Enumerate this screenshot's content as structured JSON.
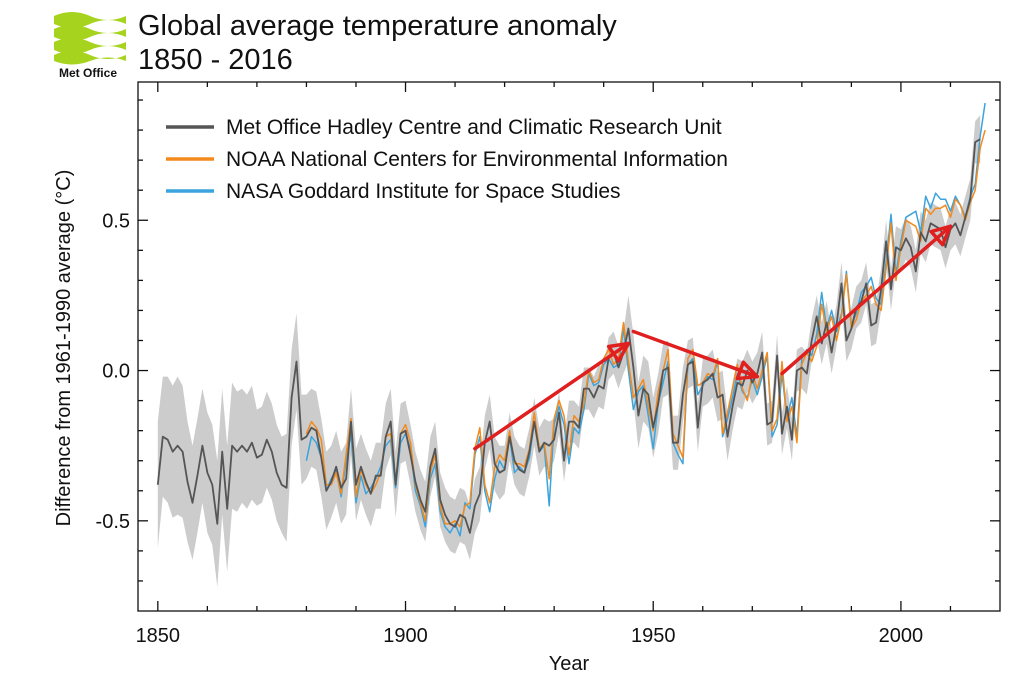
{
  "logo": {
    "text": "Met Office",
    "color": "#a6d41e"
  },
  "chart_data": {
    "type": "line",
    "title_line1": "Global average temperature anomaly",
    "title_line2": "1850 - 2016",
    "xlabel": "Year",
    "ylabel": "Difference from 1961-1990 average (°C)",
    "xlim": [
      1846,
      2020
    ],
    "ylim": [
      -0.8,
      0.96
    ],
    "xticks": [
      1850,
      1900,
      1950,
      2000
    ],
    "yticks": [
      -0.5,
      0.0,
      0.5
    ],
    "ytick_labels": [
      "-0.5",
      "0.0",
      "0.5"
    ],
    "legend_position": "top-left",
    "series": [
      {
        "name": "Met Office Hadley Centre and Climatic Research Unit",
        "color": "#555555",
        "x_start": 1850,
        "values": [
          -0.38,
          -0.22,
          -0.23,
          -0.27,
          -0.25,
          -0.27,
          -0.37,
          -0.44,
          -0.35,
          -0.25,
          -0.34,
          -0.38,
          -0.51,
          -0.27,
          -0.46,
          -0.25,
          -0.27,
          -0.25,
          -0.27,
          -0.24,
          -0.29,
          -0.28,
          -0.23,
          -0.27,
          -0.34,
          -0.38,
          -0.39,
          -0.09,
          0.03,
          -0.23,
          -0.22,
          -0.19,
          -0.2,
          -0.29,
          -0.4,
          -0.37,
          -0.32,
          -0.39,
          -0.36,
          -0.17,
          -0.38,
          -0.32,
          -0.37,
          -0.41,
          -0.35,
          -0.35,
          -0.22,
          -0.17,
          -0.38,
          -0.21,
          -0.2,
          -0.28,
          -0.37,
          -0.43,
          -0.47,
          -0.32,
          -0.26,
          -0.43,
          -0.48,
          -0.51,
          -0.52,
          -0.48,
          -0.49,
          -0.54,
          -0.45,
          -0.41,
          -0.24,
          -0.17,
          -0.31,
          -0.34,
          -0.33,
          -0.22,
          -0.3,
          -0.33,
          -0.34,
          -0.27,
          -0.17,
          -0.27,
          -0.24,
          -0.25,
          -0.23,
          -0.14,
          -0.3,
          -0.17,
          -0.17,
          -0.19,
          -0.06,
          -0.06,
          -0.09,
          -0.05,
          -0.06,
          0.04,
          0.06,
          0.01,
          0.06,
          0.14,
          0.01,
          -0.15,
          -0.06,
          -0.08,
          -0.19,
          -0.11,
          -0.0,
          0.01,
          -0.24,
          -0.24,
          -0.08,
          0.02,
          0.03,
          -0.19,
          -0.04,
          -0.03,
          -0.01,
          -0.09,
          -0.08,
          -0.22,
          -0.12,
          -0.04,
          -0.05,
          -0.0,
          -0.04,
          -0.01,
          0.06,
          -0.18,
          -0.17,
          0.05,
          -0.21,
          -0.12,
          -0.23,
          0.0,
          0.01,
          -0.01,
          0.1,
          0.18,
          0.09,
          0.16,
          0.06,
          0.15,
          0.29,
          0.1,
          0.14,
          0.21,
          0.23,
          0.29,
          0.15,
          0.16,
          0.27,
          0.43,
          0.27,
          0.41,
          0.4,
          0.44,
          0.41,
          0.33,
          0.46,
          0.43,
          0.49,
          0.48,
          0.47,
          0.41,
          0.47,
          0.49,
          0.45,
          0.51,
          0.57,
          0.76,
          0.77
        ]
      },
      {
        "name": "NOAA National Centers for Environmental Information",
        "color": "#f28a1e",
        "x_start": 1880,
        "values": [
          -0.21,
          -0.17,
          -0.19,
          -0.23,
          -0.38,
          -0.38,
          -0.34,
          -0.41,
          -0.28,
          -0.16,
          -0.42,
          -0.33,
          -0.38,
          -0.41,
          -0.38,
          -0.34,
          -0.22,
          -0.21,
          -0.37,
          -0.21,
          -0.18,
          -0.24,
          -0.38,
          -0.44,
          -0.5,
          -0.34,
          -0.28,
          -0.45,
          -0.51,
          -0.51,
          -0.5,
          -0.52,
          -0.45,
          -0.44,
          -0.26,
          -0.19,
          -0.38,
          -0.44,
          -0.32,
          -0.28,
          -0.3,
          -0.2,
          -0.31,
          -0.31,
          -0.32,
          -0.26,
          -0.14,
          -0.26,
          -0.24,
          -0.36,
          -0.16,
          -0.1,
          -0.15,
          -0.28,
          -0.15,
          -0.17,
          -0.11,
          -0.0,
          -0.04,
          -0.03,
          0.04,
          0.07,
          0.02,
          0.04,
          0.16,
          0.03,
          -0.09,
          -0.06,
          -0.03,
          -0.12,
          -0.2,
          -0.07,
          0.0,
          0.07,
          -0.21,
          -0.25,
          -0.29,
          0.04,
          0.07,
          -0.05,
          -0.04,
          -0.01,
          -0.02,
          0.04,
          -0.21,
          -0.14,
          -0.06,
          0.02,
          -0.06,
          -0.1,
          -0.01,
          -0.06,
          0.0,
          0.06,
          -0.2,
          -0.16,
          0.03,
          -0.17,
          -0.12,
          -0.24,
          0.02,
          0.06,
          0.03,
          0.08,
          0.22,
          0.13,
          0.18,
          0.1,
          0.18,
          0.32,
          0.14,
          0.17,
          0.23,
          0.25,
          0.28,
          0.22,
          0.2,
          0.34,
          0.49,
          0.3,
          0.41,
          0.5,
          0.49,
          0.48,
          0.43,
          0.54,
          0.52,
          0.54,
          0.54,
          0.55,
          0.51,
          0.57,
          0.55,
          0.5,
          0.56,
          0.6,
          0.74,
          0.8
        ]
      },
      {
        "name": "NASA Goddard Institute for Space Studies",
        "color": "#3ba3dd",
        "x_start": 1880,
        "values": [
          -0.3,
          -0.22,
          -0.24,
          -0.29,
          -0.4,
          -0.36,
          -0.33,
          -0.42,
          -0.3,
          -0.21,
          -0.44,
          -0.35,
          -0.41,
          -0.39,
          -0.36,
          -0.32,
          -0.25,
          -0.23,
          -0.39,
          -0.24,
          -0.21,
          -0.26,
          -0.4,
          -0.45,
          -0.52,
          -0.36,
          -0.31,
          -0.47,
          -0.52,
          -0.54,
          -0.51,
          -0.55,
          -0.44,
          -0.46,
          -0.28,
          -0.22,
          -0.4,
          -0.47,
          -0.36,
          -0.3,
          -0.33,
          -0.22,
          -0.34,
          -0.32,
          -0.34,
          -0.29,
          -0.17,
          -0.27,
          -0.25,
          -0.45,
          -0.18,
          -0.12,
          -0.18,
          -0.31,
          -0.19,
          -0.21,
          -0.13,
          -0.01,
          -0.05,
          -0.04,
          0.02,
          0.04,
          0.01,
          0.02,
          0.14,
          0.0,
          -0.13,
          -0.07,
          -0.05,
          -0.15,
          -0.26,
          -0.11,
          -0.04,
          0.03,
          -0.24,
          -0.28,
          -0.31,
          0.02,
          0.04,
          -0.08,
          -0.05,
          -0.02,
          -0.03,
          0.03,
          -0.22,
          -0.16,
          -0.09,
          -0.01,
          -0.07,
          -0.09,
          -0.03,
          -0.08,
          -0.02,
          0.05,
          -0.22,
          -0.18,
          -0.01,
          -0.16,
          -0.09,
          -0.22,
          0.04,
          0.07,
          0.05,
          0.12,
          0.26,
          0.14,
          0.2,
          0.13,
          0.19,
          0.33,
          0.15,
          0.19,
          0.26,
          0.28,
          0.31,
          0.24,
          0.22,
          0.36,
          0.52,
          0.32,
          0.43,
          0.51,
          0.52,
          0.53,
          0.46,
          0.58,
          0.54,
          0.59,
          0.57,
          0.57,
          0.53,
          0.58,
          0.55,
          0.51,
          0.58,
          0.62,
          0.78,
          0.89
        ]
      }
    ],
    "uncertainty_band": {
      "color": "#cccccc",
      "based_on": "Met Office Hadley Centre and Climatic Research Unit",
      "upper": [
        -0.17,
        -0.02,
        -0.02,
        -0.05,
        -0.02,
        -0.05,
        -0.17,
        -0.25,
        -0.16,
        -0.06,
        -0.14,
        -0.18,
        -0.3,
        -0.06,
        -0.25,
        -0.04,
        -0.07,
        -0.06,
        -0.08,
        -0.05,
        -0.13,
        -0.12,
        -0.07,
        -0.11,
        -0.18,
        -0.22,
        -0.21,
        0.07,
        0.19,
        -0.08,
        -0.08,
        -0.06,
        -0.07,
        -0.16,
        -0.27,
        -0.25,
        -0.2,
        -0.27,
        -0.24,
        -0.06,
        -0.26,
        -0.21,
        -0.26,
        -0.3,
        -0.24,
        -0.24,
        -0.11,
        -0.06,
        -0.27,
        -0.11,
        -0.1,
        -0.18,
        -0.27,
        -0.33,
        -0.37,
        -0.22,
        -0.17,
        -0.34,
        -0.39,
        -0.42,
        -0.43,
        -0.39,
        -0.4,
        -0.45,
        -0.36,
        -0.32,
        -0.15,
        -0.08,
        -0.22,
        -0.25,
        -0.25,
        -0.14,
        -0.22,
        -0.25,
        -0.26,
        -0.19,
        -0.09,
        -0.19,
        -0.16,
        -0.17,
        -0.16,
        -0.07,
        -0.23,
        -0.1,
        -0.1,
        -0.12,
        0.01,
        0.01,
        -0.02,
        0.02,
        0.01,
        0.11,
        0.13,
        0.08,
        0.13,
        0.25,
        0.12,
        -0.04,
        0.05,
        0.03,
        -0.09,
        -0.01,
        0.09,
        0.1,
        -0.15,
        -0.15,
        0.01,
        0.1,
        0.11,
        -0.11,
        0.04,
        0.05,
        0.07,
        -0.01,
        0.0,
        -0.14,
        -0.04,
        0.04,
        0.03,
        0.07,
        0.03,
        0.06,
        0.13,
        -0.11,
        -0.1,
        0.12,
        -0.14,
        -0.05,
        -0.16,
        0.07,
        0.08,
        0.06,
        0.17,
        0.25,
        0.16,
        0.23,
        0.13,
        0.22,
        0.36,
        0.17,
        0.21,
        0.28,
        0.3,
        0.36,
        0.22,
        0.23,
        0.34,
        0.5,
        0.34,
        0.48,
        0.47,
        0.51,
        0.48,
        0.4,
        0.53,
        0.5,
        0.56,
        0.55,
        0.54,
        0.48,
        0.54,
        0.56,
        0.52,
        0.58,
        0.64,
        0.83,
        0.85
      ],
      "lower": [
        -0.59,
        -0.42,
        -0.44,
        -0.49,
        -0.48,
        -0.49,
        -0.57,
        -0.63,
        -0.54,
        -0.44,
        -0.54,
        -0.58,
        -0.72,
        -0.48,
        -0.67,
        -0.46,
        -0.47,
        -0.44,
        -0.46,
        -0.43,
        -0.45,
        -0.44,
        -0.39,
        -0.43,
        -0.5,
        -0.54,
        -0.57,
        -0.25,
        -0.13,
        -0.38,
        -0.36,
        -0.32,
        -0.33,
        -0.42,
        -0.53,
        -0.49,
        -0.44,
        -0.51,
        -0.48,
        -0.28,
        -0.5,
        -0.43,
        -0.48,
        -0.52,
        -0.46,
        -0.46,
        -0.33,
        -0.28,
        -0.49,
        -0.31,
        -0.3,
        -0.38,
        -0.47,
        -0.53,
        -0.57,
        -0.42,
        -0.35,
        -0.52,
        -0.57,
        -0.6,
        -0.61,
        -0.57,
        -0.58,
        -0.63,
        -0.54,
        -0.5,
        -0.33,
        -0.26,
        -0.4,
        -0.43,
        -0.41,
        -0.3,
        -0.38,
        -0.41,
        -0.42,
        -0.35,
        -0.25,
        -0.35,
        -0.32,
        -0.33,
        -0.3,
        -0.21,
        -0.37,
        -0.24,
        -0.24,
        -0.26,
        -0.13,
        -0.13,
        -0.16,
        -0.12,
        -0.13,
        -0.03,
        -0.01,
        -0.06,
        -0.01,
        0.03,
        -0.1,
        -0.26,
        -0.17,
        -0.19,
        -0.29,
        -0.21,
        -0.09,
        -0.08,
        -0.33,
        -0.33,
        -0.17,
        -0.06,
        -0.05,
        -0.27,
        -0.12,
        -0.11,
        -0.09,
        -0.17,
        -0.16,
        -0.3,
        -0.2,
        -0.12,
        -0.13,
        -0.07,
        -0.11,
        -0.08,
        -0.01,
        -0.25,
        -0.24,
        -0.02,
        -0.28,
        -0.19,
        -0.3,
        -0.07,
        -0.06,
        -0.08,
        0.03,
        0.11,
        0.02,
        0.09,
        -0.01,
        0.08,
        0.22,
        0.03,
        0.07,
        0.14,
        0.16,
        0.22,
        0.08,
        0.09,
        0.2,
        0.36,
        0.2,
        0.34,
        0.33,
        0.37,
        0.34,
        0.26,
        0.39,
        0.36,
        0.42,
        0.41,
        0.4,
        0.34,
        0.4,
        0.42,
        0.38,
        0.44,
        0.5,
        0.69,
        0.69
      ]
    },
    "trend_arrows": {
      "color": "#e01f1f",
      "segments": [
        {
          "from": [
            1914,
            -0.26
          ],
          "to": [
            1945,
            0.09
          ]
        },
        {
          "from": [
            1946,
            0.13
          ],
          "to": [
            1971,
            -0.02
          ]
        },
        {
          "from": [
            1976,
            -0.01
          ],
          "to": [
            2010,
            0.48
          ]
        }
      ]
    }
  }
}
